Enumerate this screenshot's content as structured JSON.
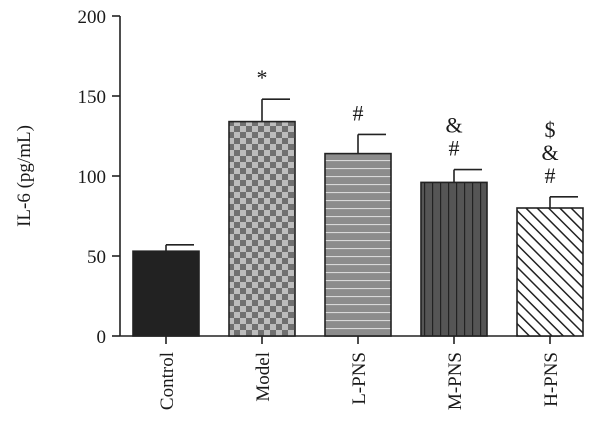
{
  "chart_data": {
    "type": "bar",
    "title": "",
    "xlabel": "",
    "ylabel": "IL-6 (pg/mL)",
    "ylim": [
      0,
      200
    ],
    "yticks": [
      0,
      50,
      100,
      150,
      200
    ],
    "grid": false,
    "categories": [
      "Control",
      "Model",
      "L-PNS",
      "M-PNS",
      "H-PNS"
    ],
    "values": [
      53,
      134,
      114,
      96,
      80
    ],
    "errors": [
      4,
      14,
      12,
      8,
      7
    ],
    "significance": [
      [],
      [
        "*"
      ],
      [
        "#"
      ],
      [
        "&",
        "#"
      ],
      [
        "$",
        "&",
        "#"
      ]
    ],
    "patterns": [
      "solid",
      "checker",
      "horizontal",
      "vertical",
      "diagonal"
    ],
    "colors": {
      "control": "#222222",
      "model": "#7a7a7a",
      "lpns": "#8a8a8a",
      "mpns": "#5a5a5a",
      "hpns": "#ffffff",
      "stroke": "#222222"
    }
  }
}
